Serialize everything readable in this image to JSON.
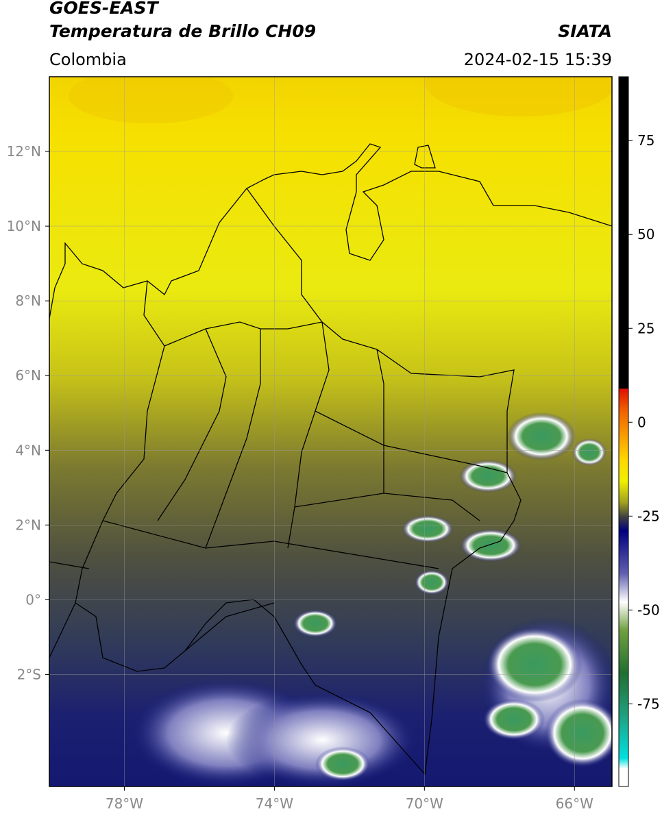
{
  "header": {
    "title": "GOES-EAST",
    "subtitle": "Temperatura de Brillo CH09",
    "source": "SIATA",
    "region": "Colombia",
    "datetime": "2024-02-15 15:39"
  },
  "map": {
    "lon_lim": [
      -80,
      -65
    ],
    "lat_lim": [
      -5,
      14
    ],
    "lon_ticks": [
      {
        "value": -78,
        "label": "78°W"
      },
      {
        "value": -74,
        "label": "74°W"
      },
      {
        "value": -70,
        "label": "70°W"
      },
      {
        "value": -66,
        "label": "66°W"
      }
    ],
    "lat_ticks": [
      {
        "value": 12,
        "label": "12°N"
      },
      {
        "value": 10,
        "label": "10°N"
      },
      {
        "value": 8,
        "label": "8°N"
      },
      {
        "value": 6,
        "label": "6°N"
      },
      {
        "value": 4,
        "label": "4°N"
      },
      {
        "value": 2,
        "label": "2°N"
      },
      {
        "value": 0,
        "label": "0°"
      },
      {
        "value": -2,
        "label": "2°S"
      }
    ],
    "grid": true
  },
  "colorbar": {
    "lim": [
      -97,
      92
    ],
    "ticks": [
      75,
      50,
      25,
      0,
      -25,
      -50,
      -75
    ]
  }
}
